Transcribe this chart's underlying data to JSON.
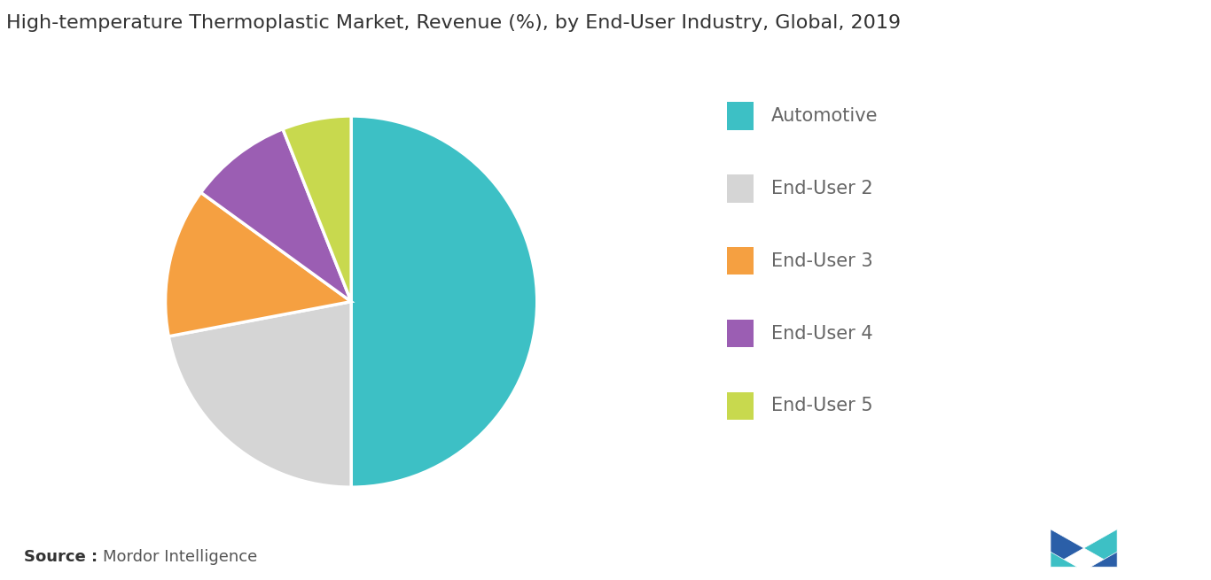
{
  "title": "High-temperature Thermoplastic Market, Revenue (%), by End-User Industry, Global, 2019",
  "slices": [
    {
      "label": "Automotive",
      "value": 50,
      "color": "#3DC0C5"
    },
    {
      "label": "End-User 2",
      "value": 22,
      "color": "#D5D5D5"
    },
    {
      "label": "End-User 3",
      "value": 13,
      "color": "#F5A041"
    },
    {
      "label": "End-User 4",
      "value": 9,
      "color": "#9B5EB3"
    },
    {
      "label": "End-User 5",
      "value": 6,
      "color": "#C8D94E"
    }
  ],
  "source_bold": "Source :",
  "source_text": "Mordor Intelligence",
  "title_fontsize": 16,
  "legend_fontsize": 15,
  "source_fontsize": 13,
  "background_color": "#ffffff",
  "start_angle": 90
}
